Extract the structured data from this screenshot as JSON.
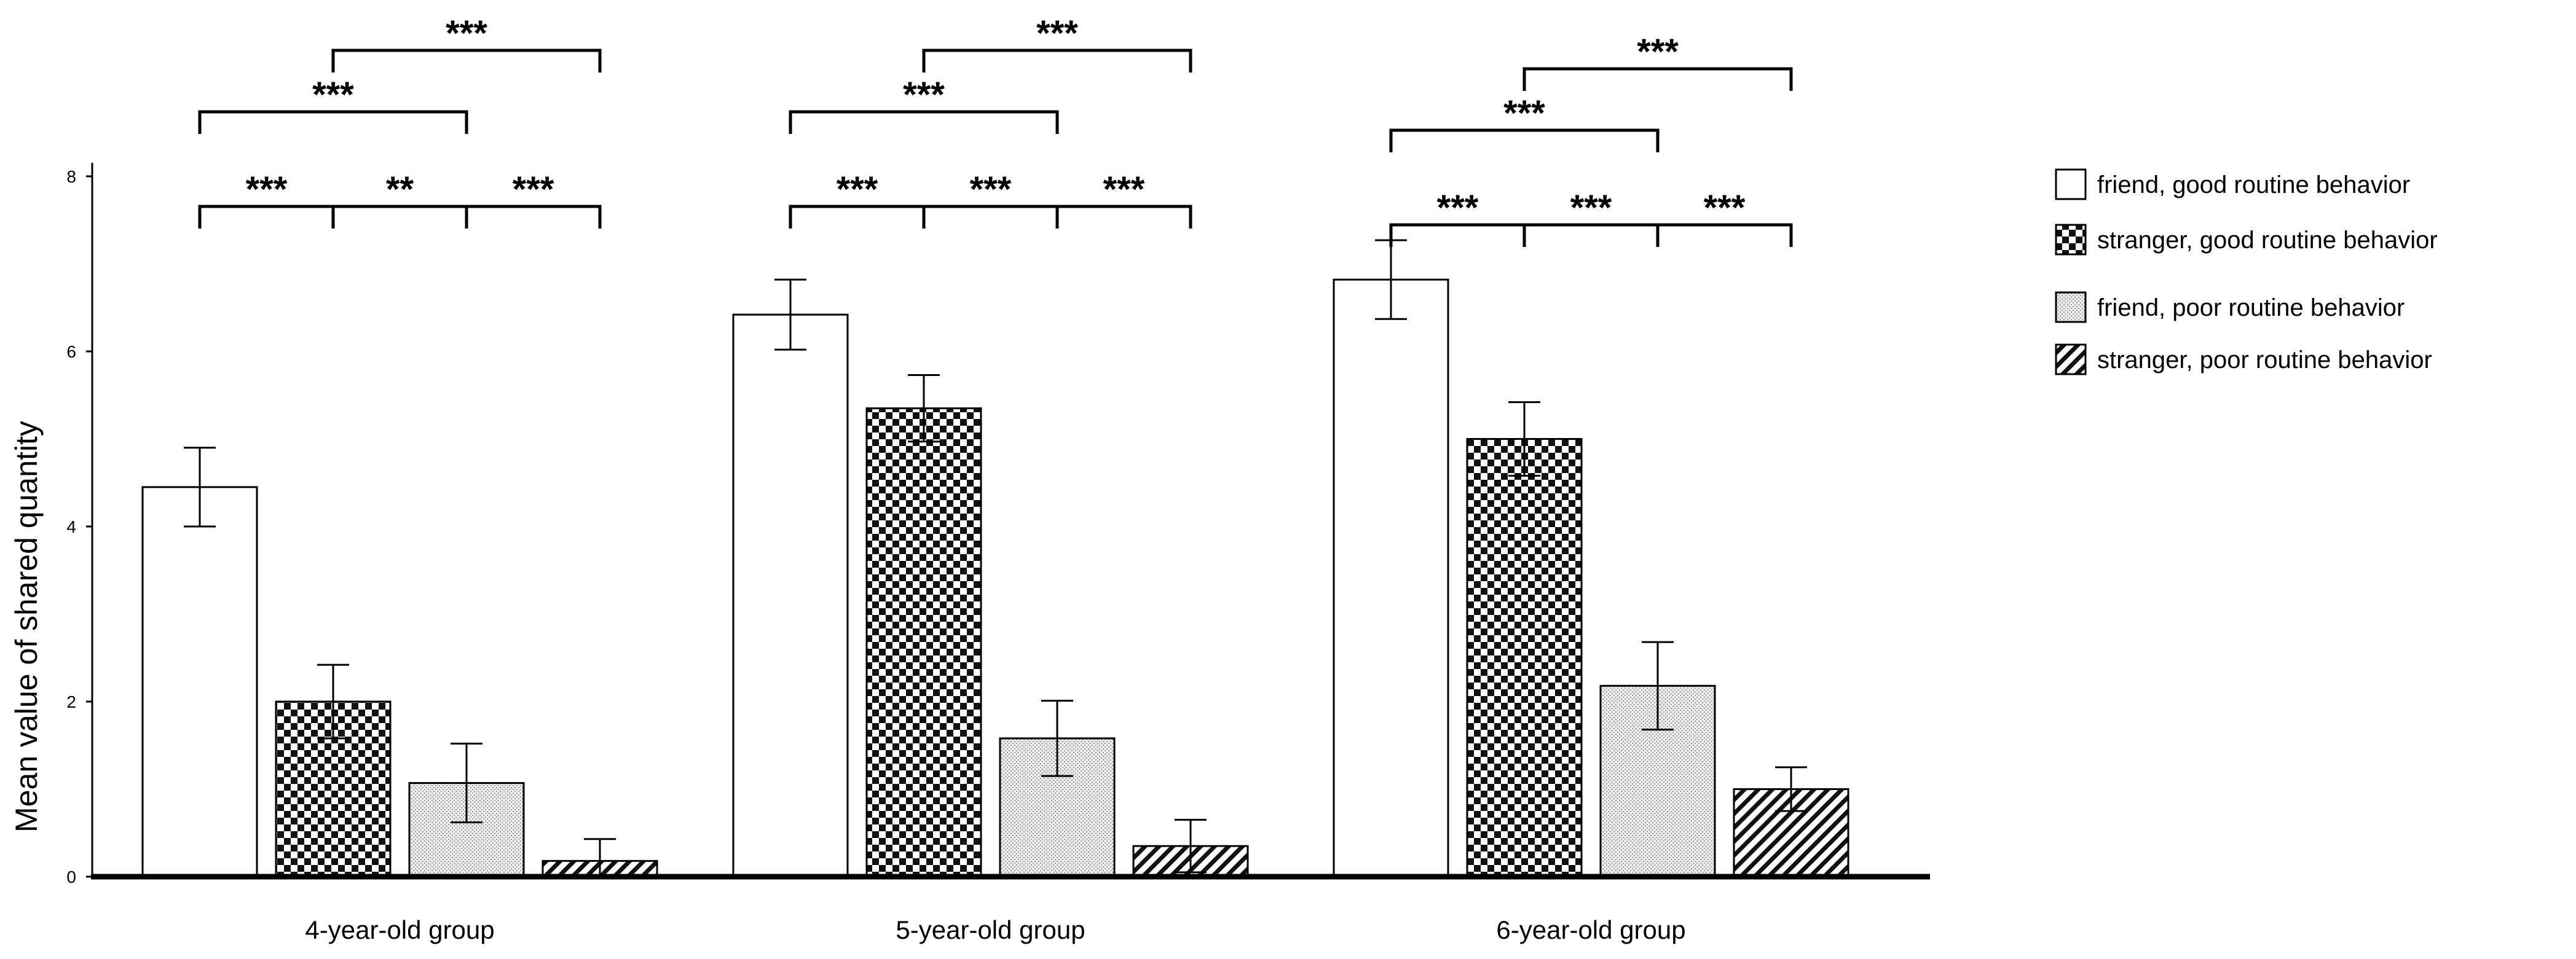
{
  "chart_data": {
    "type": "bar",
    "title": "",
    "xlabel": "",
    "ylabel": "Mean value of shared quantity",
    "ylim": [
      0,
      8
    ],
    "yticks": [
      "0",
      "2",
      "4",
      "6",
      "8"
    ],
    "grid": false,
    "legend_position": "right",
    "categories": [
      "4-year-old group",
      "5-year-old group",
      "6-year-old group"
    ],
    "series": [
      {
        "name": "friend, good routine behavior",
        "pattern": "plain",
        "values": [
          4.45,
          6.42,
          6.82
        ],
        "error": [
          0.45,
          0.4,
          0.45
        ]
      },
      {
        "name": "stranger, good routine behavior",
        "pattern": "checker",
        "values": [
          2.0,
          5.35,
          5.0
        ],
        "error": [
          0.42,
          0.38,
          0.42
        ]
      },
      {
        "name": "friend, poor routine behavior",
        "pattern": "dots",
        "values": [
          1.07,
          1.58,
          2.18
        ],
        "error": [
          0.45,
          0.43,
          0.5
        ]
      },
      {
        "name": "stranger, poor routine behavior",
        "pattern": "hatch",
        "values": [
          0.18,
          0.35,
          1.0
        ],
        "error": [
          0.25,
          0.3,
          0.25
        ]
      }
    ],
    "significance": [
      {
        "group": 0,
        "from": 0,
        "to": 1,
        "level": 1,
        "label": "***"
      },
      {
        "group": 0,
        "from": 1,
        "to": 2,
        "level": 1,
        "label": "**"
      },
      {
        "group": 0,
        "from": 2,
        "to": 3,
        "level": 1,
        "label": "***"
      },
      {
        "group": 0,
        "from": 0,
        "to": 2,
        "level": 2,
        "label": "***"
      },
      {
        "group": 0,
        "from": 1,
        "to": 3,
        "level": 3,
        "label": "***"
      },
      {
        "group": 1,
        "from": 0,
        "to": 1,
        "level": 1,
        "label": "***"
      },
      {
        "group": 1,
        "from": 1,
        "to": 2,
        "level": 1,
        "label": "***"
      },
      {
        "group": 1,
        "from": 2,
        "to": 3,
        "level": 1,
        "label": "***"
      },
      {
        "group": 1,
        "from": 0,
        "to": 2,
        "level": 2,
        "label": "***"
      },
      {
        "group": 1,
        "from": 1,
        "to": 3,
        "level": 3,
        "label": "***"
      },
      {
        "group": 2,
        "from": 0,
        "to": 1,
        "level": 1,
        "label": "***"
      },
      {
        "group": 2,
        "from": 1,
        "to": 2,
        "level": 1,
        "label": "***"
      },
      {
        "group": 2,
        "from": 2,
        "to": 3,
        "level": 1,
        "label": "***"
      },
      {
        "group": 2,
        "from": 0,
        "to": 2,
        "level": 2,
        "label": "***"
      },
      {
        "group": 2,
        "from": 1,
        "to": 3,
        "level": 3,
        "label": "***"
      }
    ]
  }
}
